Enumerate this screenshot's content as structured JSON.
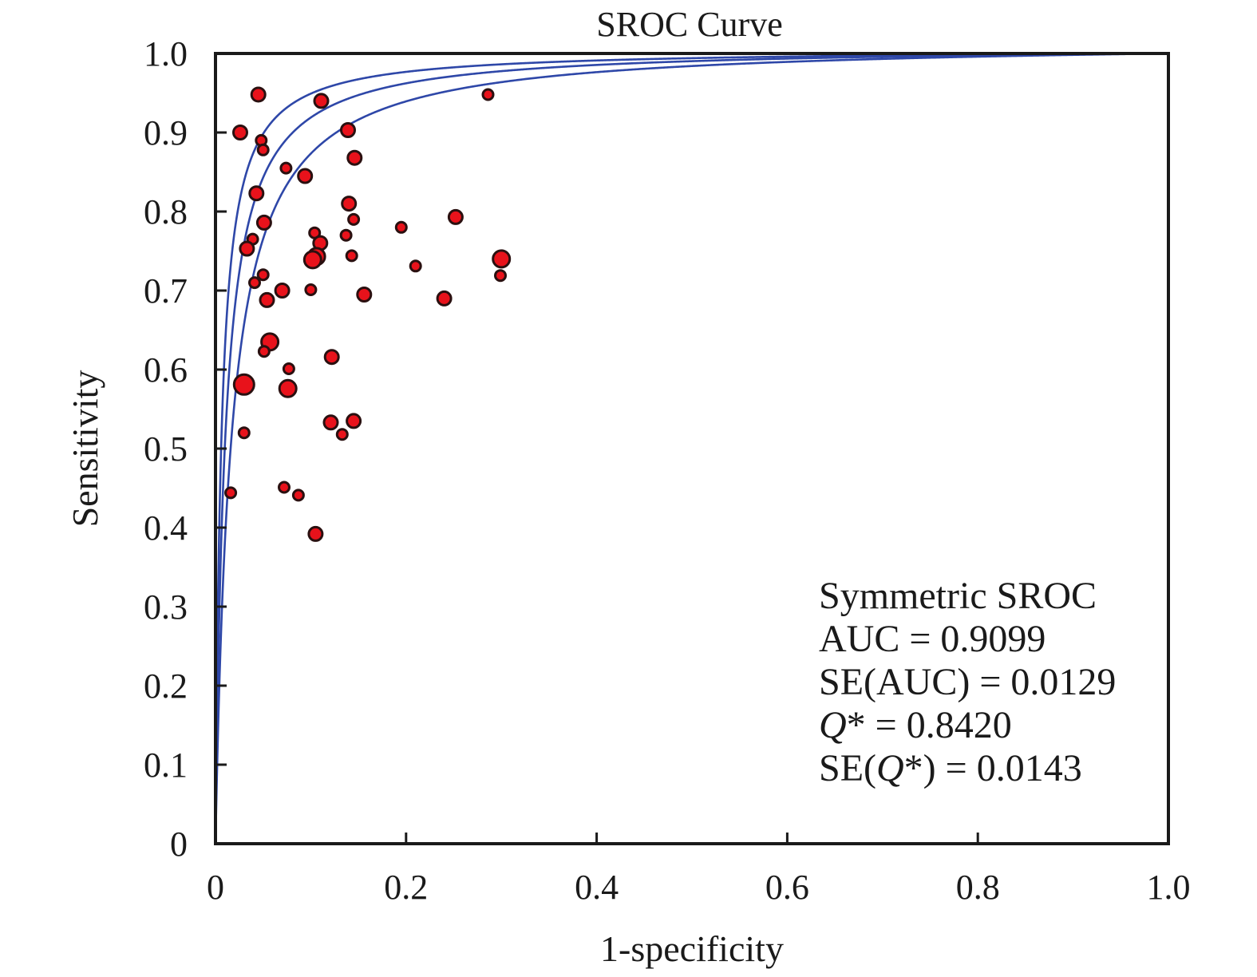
{
  "chart_data": {
    "type": "scatter",
    "title": "SROC Curve",
    "xlabel": "1-specificity",
    "ylabel": "Sensitivity",
    "xlim": [
      0,
      1
    ],
    "ylim": [
      0,
      1
    ],
    "grid": false,
    "x_ticks": [
      0,
      0.2,
      0.4,
      0.6,
      0.8,
      1.0
    ],
    "x_tick_labels": [
      "0",
      "0.2",
      "0.4",
      "0.6",
      "0.8",
      "1.0"
    ],
    "y_ticks": [
      0,
      0.1,
      0.2,
      0.3,
      0.4,
      0.5,
      0.6,
      0.7,
      0.8,
      0.9,
      1.0
    ],
    "y_tick_labels": [
      "0",
      "0.1",
      "0.2",
      "0.3",
      "0.4",
      "0.5",
      "0.6",
      "0.7",
      "0.8",
      "0.9",
      "1.0"
    ],
    "colors": {
      "points": "#e8121b",
      "point_outline": "#2a1010",
      "curves": "#2e47a8",
      "axes": "#1a1a1a"
    },
    "curves": [
      {
        "dor": 168
      },
      {
        "dor": 102
      },
      {
        "dor": 62
      }
    ],
    "points": [
      {
        "x": 0.045,
        "y": 0.948,
        "size": "medium"
      },
      {
        "x": 0.111,
        "y": 0.94,
        "size": "medium"
      },
      {
        "x": 0.286,
        "y": 0.948,
        "size": "small"
      },
      {
        "x": 0.026,
        "y": 0.9,
        "size": "medium"
      },
      {
        "x": 0.139,
        "y": 0.903,
        "size": "medium"
      },
      {
        "x": 0.048,
        "y": 0.89,
        "size": "small"
      },
      {
        "x": 0.05,
        "y": 0.878,
        "size": "small"
      },
      {
        "x": 0.146,
        "y": 0.868,
        "size": "medium"
      },
      {
        "x": 0.074,
        "y": 0.855,
        "size": "small"
      },
      {
        "x": 0.094,
        "y": 0.845,
        "size": "medium"
      },
      {
        "x": 0.043,
        "y": 0.823,
        "size": "medium"
      },
      {
        "x": 0.14,
        "y": 0.81,
        "size": "medium"
      },
      {
        "x": 0.145,
        "y": 0.79,
        "size": "small"
      },
      {
        "x": 0.051,
        "y": 0.786,
        "size": "medium"
      },
      {
        "x": 0.252,
        "y": 0.793,
        "size": "medium"
      },
      {
        "x": 0.195,
        "y": 0.78,
        "size": "small"
      },
      {
        "x": 0.104,
        "y": 0.773,
        "size": "small"
      },
      {
        "x": 0.137,
        "y": 0.77,
        "size": "small"
      },
      {
        "x": 0.039,
        "y": 0.765,
        "size": "small"
      },
      {
        "x": 0.11,
        "y": 0.76,
        "size": "medium"
      },
      {
        "x": 0.033,
        "y": 0.753,
        "size": "medium"
      },
      {
        "x": 0.143,
        "y": 0.744,
        "size": "small"
      },
      {
        "x": 0.106,
        "y": 0.743,
        "size": "large"
      },
      {
        "x": 0.102,
        "y": 0.739,
        "size": "large"
      },
      {
        "x": 0.3,
        "y": 0.74,
        "size": "large"
      },
      {
        "x": 0.21,
        "y": 0.731,
        "size": "small"
      },
      {
        "x": 0.05,
        "y": 0.72,
        "size": "small"
      },
      {
        "x": 0.299,
        "y": 0.719,
        "size": "small"
      },
      {
        "x": 0.041,
        "y": 0.71,
        "size": "small"
      },
      {
        "x": 0.07,
        "y": 0.7,
        "size": "medium"
      },
      {
        "x": 0.1,
        "y": 0.701,
        "size": "small"
      },
      {
        "x": 0.156,
        "y": 0.695,
        "size": "medium"
      },
      {
        "x": 0.24,
        "y": 0.69,
        "size": "medium"
      },
      {
        "x": 0.054,
        "y": 0.688,
        "size": "medium"
      },
      {
        "x": 0.057,
        "y": 0.635,
        "size": "large"
      },
      {
        "x": 0.051,
        "y": 0.623,
        "size": "small"
      },
      {
        "x": 0.122,
        "y": 0.616,
        "size": "medium"
      },
      {
        "x": 0.077,
        "y": 0.601,
        "size": "small"
      },
      {
        "x": 0.03,
        "y": 0.581,
        "size": "xlarge"
      },
      {
        "x": 0.076,
        "y": 0.576,
        "size": "large"
      },
      {
        "x": 0.121,
        "y": 0.533,
        "size": "medium"
      },
      {
        "x": 0.145,
        "y": 0.535,
        "size": "medium"
      },
      {
        "x": 0.133,
        "y": 0.518,
        "size": "small"
      },
      {
        "x": 0.03,
        "y": 0.52,
        "size": "small"
      },
      {
        "x": 0.016,
        "y": 0.444,
        "size": "small"
      },
      {
        "x": 0.072,
        "y": 0.451,
        "size": "small"
      },
      {
        "x": 0.087,
        "y": 0.441,
        "size": "small"
      },
      {
        "x": 0.105,
        "y": 0.392,
        "size": "medium"
      }
    ],
    "annotation": {
      "title": "Symmetric SROC",
      "lines": [
        {
          "prefix": "AUC = ",
          "italic": "",
          "suffix": "",
          "value": "0.9099"
        },
        {
          "prefix": "SE(AUC) = ",
          "italic": "",
          "suffix": "",
          "value": "0.0129"
        },
        {
          "prefix": "",
          "italic": "Q",
          "suffix": "* = ",
          "value": "0.8420"
        },
        {
          "prefix": "SE(",
          "italic": "Q",
          "suffix": "*) = ",
          "value": "0.0143"
        }
      ]
    }
  }
}
